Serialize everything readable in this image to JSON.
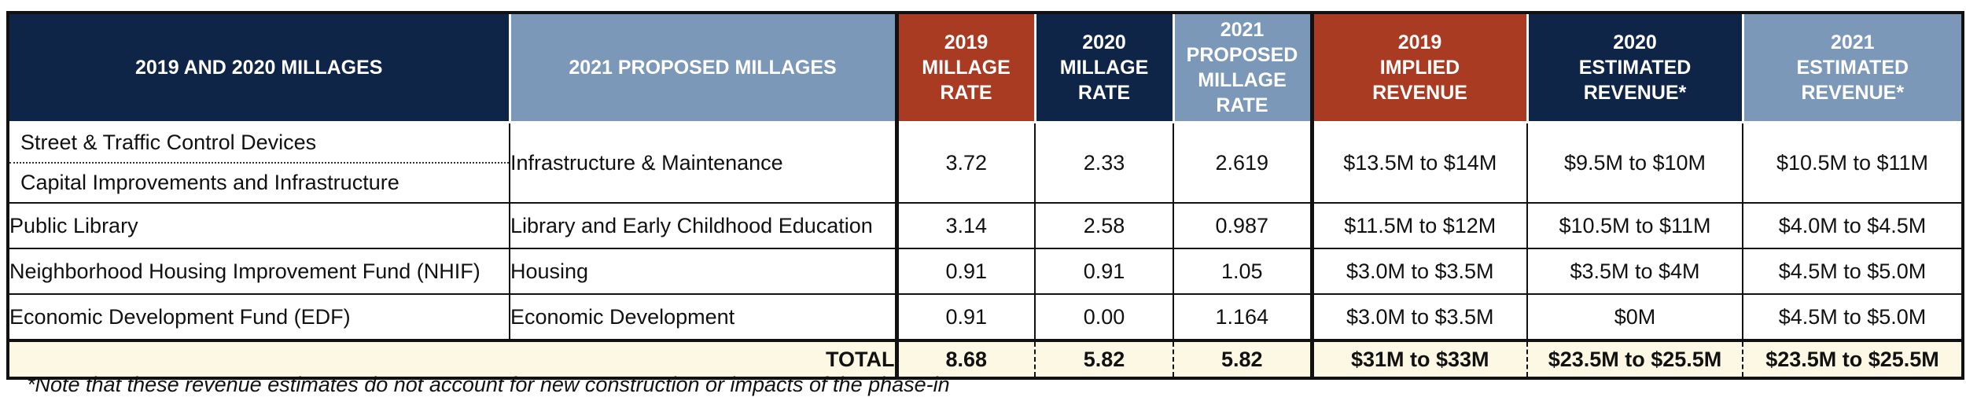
{
  "headers": {
    "col1": "2019 AND 2020 MILLAGES",
    "col2": "2021 PROPOSED MILLAGES",
    "col3": [
      "2019",
      "MILLAGE",
      "RATE"
    ],
    "col4": [
      "2020",
      "MILLAGE",
      "RATE"
    ],
    "col5": [
      "2021",
      "PROPOSED",
      "MILLAGE",
      "RATE"
    ],
    "col6": [
      "2019",
      "IMPLIED",
      "REVENUE"
    ],
    "col7": [
      "2020",
      "ESTIMATED",
      "REVENUE*"
    ],
    "col8": [
      "2021",
      "ESTIMATED",
      "REVENUE*"
    ]
  },
  "rows": [
    {
      "millage_2019_2020": [
        "Street & Traffic Control Devices",
        "Capital Improvements and Infrastructure"
      ],
      "proposed_2021": "Infrastructure & Maintenance",
      "rate_2019": "3.72",
      "rate_2020": "2.33",
      "rate_2021": "2.619",
      "revenue_2019": "$13.5M  to $14M",
      "revenue_2020": "$9.5M to $10M",
      "revenue_2021": "$10.5M to $11M"
    },
    {
      "millage_2019_2020": [
        "Public Library"
      ],
      "proposed_2021": "Library and Early Childhood Education",
      "rate_2019": "3.14",
      "rate_2020": "2.58",
      "rate_2021": "0.987",
      "revenue_2019": "$11.5M to $12M",
      "revenue_2020": "$10.5M to $11M",
      "revenue_2021": "$4.0M to $4.5M"
    },
    {
      "millage_2019_2020": [
        "Neighborhood Housing Improvement Fund (NHIF)"
      ],
      "proposed_2021": "Housing",
      "rate_2019": "0.91",
      "rate_2020": "0.91",
      "rate_2021": "1.05",
      "revenue_2019": "$3.0M to $3.5M",
      "revenue_2020": "$3.5M to $4M",
      "revenue_2021": "$4.5M to $5.0M"
    },
    {
      "millage_2019_2020": [
        "Economic Development Fund (EDF)"
      ],
      "proposed_2021": "Economic Development",
      "rate_2019": "0.91",
      "rate_2020": "0.00",
      "rate_2021": "1.164",
      "revenue_2019": "$3.0M to $3.5M",
      "revenue_2020": "$0M",
      "revenue_2021": "$4.5M to $5.0M"
    }
  ],
  "total": {
    "label": "TOTAL",
    "rate_2019": "8.68",
    "rate_2020": "5.82",
    "rate_2021": "5.82",
    "revenue_2019": "$31M to $33M",
    "revenue_2020": "$23.5M to $25.5M",
    "revenue_2021": "$23.5M to $25.5M"
  },
  "footnote": "*Note that these revenue estimates do not account for new construction or impacts of the phase-in",
  "colors": {
    "navy": "#0f2547",
    "steel_blue": "#7b98b9",
    "rust": "#a93b22",
    "total_bg": "#fdf8e4"
  }
}
